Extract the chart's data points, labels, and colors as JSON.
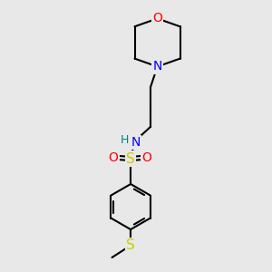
{
  "background_color": "#e8e8e8",
  "bond_color": "#000000",
  "line_width": 1.5,
  "atom_colors": {
    "O": "#ff0000",
    "N": "#0000ff",
    "S": "#cccc00",
    "H": "#008080",
    "C": "#000000"
  },
  "font_size_small": 8,
  "font_size_med": 9,
  "font_size_large": 10,
  "fig_width": 3.0,
  "fig_height": 3.0,
  "dpi": 100,
  "xlim": [
    0,
    10
  ],
  "ylim": [
    0,
    10
  ]
}
